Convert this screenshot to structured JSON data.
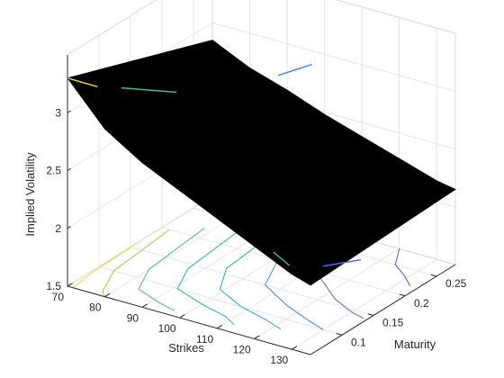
{
  "chart_data": {
    "type": "surface",
    "subtype": "3d-surface-with-contours",
    "xlabel": "Strikes",
    "ylabel": "Maturity",
    "zlabel": "Implied Volatility",
    "x_ticks": [
      "70",
      "80",
      "90",
      "100",
      "110",
      "120",
      "130"
    ],
    "y_ticks": [
      "0.1",
      "0.15",
      "0.2",
      "0.25"
    ],
    "z_ticks": [
      "1.5",
      "2",
      "2.5",
      "3"
    ],
    "xlim": [
      70,
      135
    ],
    "ylim": [
      0.05,
      0.28
    ],
    "zlim": [
      1.5,
      3.5
    ],
    "grid": true,
    "surface_color": "#000000",
    "strikes": [
      70,
      80,
      90,
      100,
      110,
      120,
      130,
      135
    ],
    "maturities": [
      0.05,
      0.28
    ],
    "implied_vol_near": [
      3.3,
      2.95,
      2.75,
      2.6,
      2.45,
      2.3,
      2.15,
      2.1
    ],
    "implied_vol_far": [
      2.85,
      2.7,
      2.6,
      2.48,
      2.38,
      2.28,
      2.18,
      2.15
    ],
    "contour_paths": [
      {
        "color": "#f2d32c",
        "points": [
          [
            70,
            0.16
          ],
          [
            70.5,
            0.085
          ],
          [
            71.5,
            0.05
          ]
        ]
      },
      {
        "color": "#9acd3c",
        "points": [
          [
            72,
            0.2
          ],
          [
            74,
            0.1
          ],
          [
            78,
            0.058
          ],
          [
            80,
            0.05
          ]
        ]
      },
      {
        "color": "#4cbd6c",
        "points": [
          [
            78,
            0.22
          ],
          [
            80,
            0.12
          ],
          [
            84,
            0.08
          ],
          [
            92,
            0.066
          ],
          [
            97,
            0.06
          ]
        ]
      },
      {
        "color": "#23b3b2",
        "points": [
          [
            85,
            0.24
          ],
          [
            87,
            0.14
          ],
          [
            91,
            0.1
          ],
          [
            100,
            0.085
          ],
          [
            108,
            0.075
          ],
          [
            112,
            0.065
          ]
        ]
      },
      {
        "color": "#26a2d8",
        "points": [
          [
            92,
            0.26
          ],
          [
            94,
            0.16
          ],
          [
            99,
            0.12
          ],
          [
            108,
            0.1
          ],
          [
            116,
            0.09
          ],
          [
            122,
            0.08
          ]
        ]
      },
      {
        "color": "#3f89e8",
        "points": [
          [
            99,
            0.275
          ],
          [
            101,
            0.2
          ],
          [
            106,
            0.15
          ],
          [
            116,
            0.125
          ],
          [
            124,
            0.11
          ],
          [
            130,
            0.1
          ]
        ]
      },
      {
        "color": "#4a6ce8",
        "points": [
          [
            106,
            0.28
          ],
          [
            108,
            0.23
          ],
          [
            114,
            0.19
          ],
          [
            123,
            0.16
          ],
          [
            130,
            0.145
          ],
          [
            134,
            0.14
          ]
        ]
      },
      {
        "color": "#4e4fd8",
        "points": [
          [
            120,
            0.28
          ],
          [
            124,
            0.25
          ],
          [
            129,
            0.235
          ],
          [
            133,
            0.22
          ]
        ]
      }
    ],
    "surface_highlights": [
      {
        "color": "#f2d32c",
        "points": [
          [
            70,
            0.05,
            3.3
          ],
          [
            73,
            0.08,
            3.15
          ]
        ]
      },
      {
        "color": "#4cbd6c",
        "points": [
          [
            76,
            0.1,
            3.1
          ],
          [
            84,
            0.14,
            3.0
          ]
        ]
      },
      {
        "color": "#3f89e8",
        "points": [
          [
            96,
            0.23,
            2.95
          ],
          [
            100,
            0.26,
            2.98
          ]
        ]
      },
      {
        "color": "#23b3b2",
        "points": [
          [
            120,
            0.08,
            2.15
          ],
          [
            126,
            0.07,
            2.12
          ]
        ]
      },
      {
        "color": "#4a6ce8",
        "points": [
          [
            130,
            0.1,
            2.05
          ],
          [
            135,
            0.13,
            2.05
          ]
        ]
      }
    ]
  }
}
